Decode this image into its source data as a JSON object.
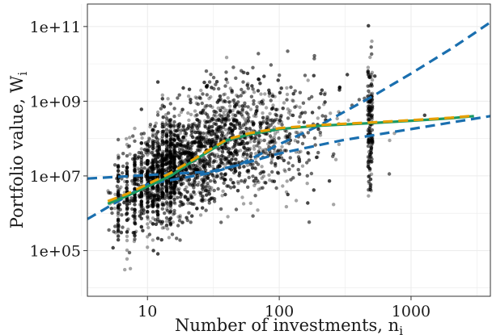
{
  "chart_data": {
    "type": "scatter",
    "title": "",
    "xlabel": "Number of investments, n",
    "xlabel_sub": "i",
    "ylabel": "Portfolio value, W",
    "ylabel_sub": "i",
    "x_scale": "log10",
    "y_scale": "log10",
    "xlim": [
      3.5,
      4000
    ],
    "ylim": [
      6000,
      400000000000
    ],
    "grid": true,
    "legend": "none",
    "x_ticks": [
      {
        "value": 10,
        "label": "10"
      },
      {
        "value": 100,
        "label": "100"
      },
      {
        "value": 1000,
        "label": "1000"
      }
    ],
    "y_ticks": [
      {
        "value": 100000,
        "label": "1e+05"
      },
      {
        "value": 10000000,
        "label": "1e+07"
      },
      {
        "value": 1000000000,
        "label": "1e+09"
      },
      {
        "value": 100000000000,
        "label": "1e+11"
      }
    ],
    "scatter_color": "#000000",
    "scatter_opacity": 0.35,
    "scatter_count_estimate": 5000,
    "series": [
      {
        "style": "dashed",
        "color": "#1a6faf",
        "x": [
          3.5,
          10,
          30,
          50,
          100,
          200,
          500,
          1000,
          2000,
          3000,
          4000
        ],
        "y": [
          8500000,
          10500000,
          13000000,
          20000000,
          70000000,
          220000000,
          1300000000,
          5500000000,
          25000000000,
          65000000000,
          130000000000
        ]
      },
      {
        "style": "dashed",
        "color": "#1a6faf",
        "x": [
          3.5,
          10,
          30,
          100,
          300,
          1000,
          4000
        ],
        "y": [
          700000,
          6000000,
          12000000,
          40000000,
          90000000,
          180000000,
          400000000
        ]
      },
      {
        "style": "solid",
        "color": "#1a9a62",
        "x": [
          5,
          7,
          10,
          15,
          20,
          30,
          40,
          60,
          100,
          200,
          500,
          1000,
          2000,
          3000
        ],
        "y": [
          1800000,
          2900000,
          5200000,
          10000000,
          20000000,
          48000000,
          90000000,
          130000000,
          180000000,
          220000000,
          260000000,
          300000000,
          350000000,
          400000000
        ]
      },
      {
        "style": "dashed",
        "color": "#e69f00",
        "x": [
          5,
          7,
          10,
          15,
          20,
          30,
          40,
          60,
          100,
          200,
          500,
          1000,
          2000,
          3000
        ],
        "y": [
          2100000,
          3300000,
          6000000,
          12000000,
          22000000,
          52000000,
          95000000,
          140000000,
          190000000,
          230000000,
          270000000,
          310000000,
          360000000,
          410000000
        ]
      }
    ]
  }
}
